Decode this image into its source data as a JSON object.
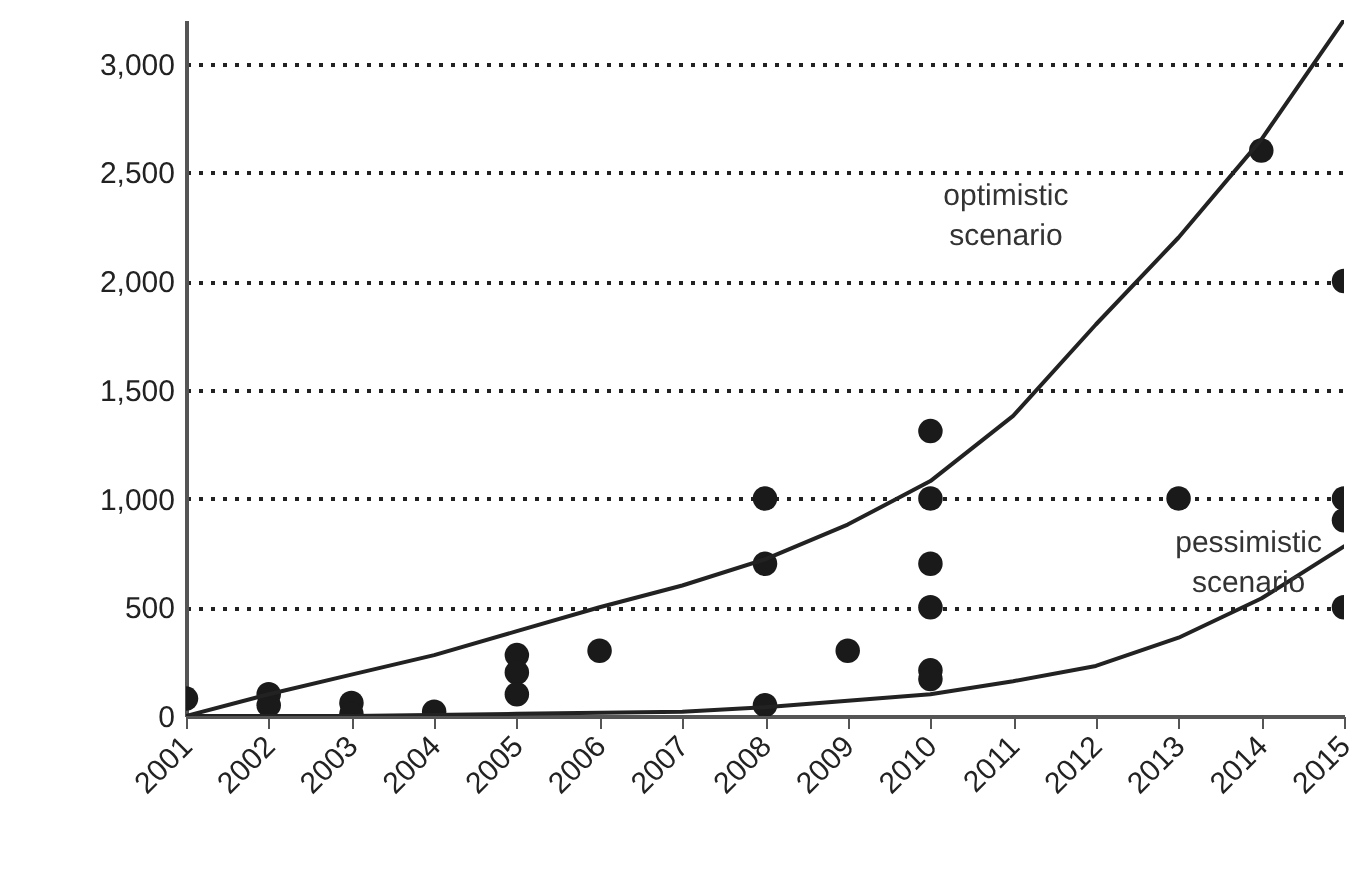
{
  "chart_data": {
    "type": "scatter",
    "xlim": [
      2001,
      2015
    ],
    "ylim": [
      0,
      3200
    ],
    "xticks": [
      2001,
      2002,
      2003,
      2004,
      2005,
      2006,
      2007,
      2008,
      2009,
      2010,
      2011,
      2012,
      2013,
      2014,
      2015
    ],
    "yticks": [
      0,
      500,
      {
        "value": 1000,
        "label": "1,000"
      },
      {
        "value": 1500,
        "label": "1,500"
      },
      {
        "value": 2000,
        "label": "2,000"
      },
      {
        "value": 2500,
        "label": "2,500"
      },
      {
        "value": 3000,
        "label": "3,000"
      }
    ],
    "grid": "y",
    "marker": "circle",
    "series": [
      {
        "color": "#1a1a1a",
        "x": [
          2001,
          2002,
          2002,
          2003,
          2003,
          2004,
          2005,
          2005,
          2005,
          2006,
          2008,
          2008,
          2008,
          2009,
          2010,
          2010,
          2010,
          2010,
          2010,
          2010,
          2013,
          2014,
          2015,
          2015,
          2015,
          2015
        ],
        "values": [
          80,
          100,
          50,
          60,
          10,
          20,
          280,
          200,
          100,
          300,
          1000,
          700,
          50,
          300,
          1310,
          1000,
          700,
          500,
          210,
          170,
          1000,
          2600,
          2000,
          1000,
          900,
          500
        ]
      },
      {
        "type": "line",
        "name": "optimistic scenario",
        "marker": "none",
        "color": "#222222",
        "line_style": "solid",
        "x": [
          2001,
          2002,
          2003,
          2004,
          2005,
          2006,
          2007,
          2008,
          2009,
          2010,
          2011,
          2012,
          2013,
          2014,
          2015
        ],
        "values": [
          0,
          100,
          190,
          280,
          390,
          500,
          600,
          720,
          880,
          1080,
          1380,
          1800,
          2200,
          2650,
          3200
        ]
      },
      {
        "type": "line",
        "name": "pessimistic scenario",
        "marker": "none",
        "color": "#222222",
        "line_style": "solid",
        "x": [
          2001,
          2003,
          2005,
          2007,
          2008,
          2009,
          2010,
          2011,
          2012,
          2013,
          2014,
          2015
        ],
        "values": [
          0,
          0,
          10,
          20,
          40,
          70,
          100,
          160,
          230,
          360,
          540,
          780
        ]
      }
    ]
  }
}
